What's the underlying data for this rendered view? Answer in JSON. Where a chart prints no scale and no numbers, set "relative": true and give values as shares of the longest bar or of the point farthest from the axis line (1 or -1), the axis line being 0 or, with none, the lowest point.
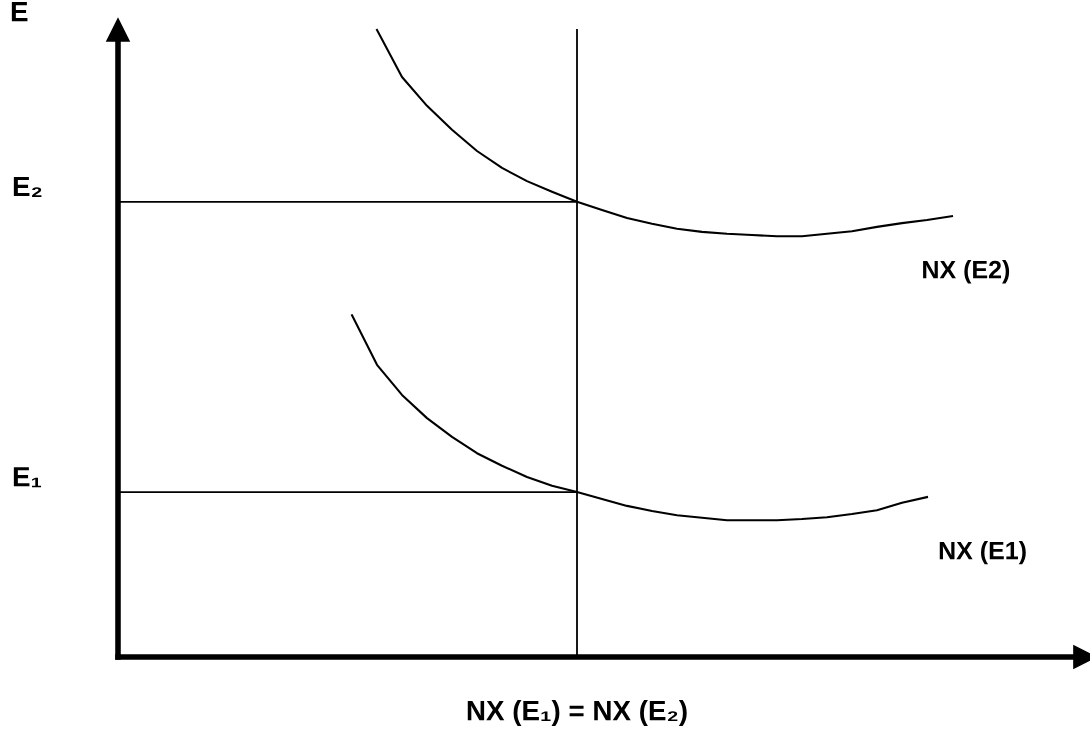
{
  "chart_data": {
    "type": "line",
    "relative": true,
    "ylabel": "E",
    "xlabel": "NX (E₁) = NX (E₂)",
    "legend": false,
    "marker": "none",
    "line_style": "solid",
    "categories": [
      null,
      null,
      null,
      null,
      null,
      null,
      null,
      null,
      null,
      null,
      null,
      null,
      null,
      null,
      null,
      null,
      null,
      null,
      null,
      null,
      null,
      null,
      null,
      null,
      null,
      null,
      null,
      null,
      null,
      null,
      null,
      null,
      null,
      null
    ],
    "series": [
      {
        "name": "NX (E2)",
        "color": "#000000",
        "values": [
          null,
          null,
          null,
          null,
          null,
          null,
          null,
          null,
          null,
          null,
          1.0,
          0.925,
          0.879,
          0.841,
          0.807,
          0.78,
          0.759,
          0.742,
          0.726,
          0.713,
          0.7,
          0.691,
          0.683,
          0.678,
          0.675,
          0.673,
          0.671,
          0.671,
          0.675,
          0.679,
          0.686,
          0.692,
          0.697,
          0.703
        ]
      },
      {
        "name": "NX (E1)",
        "color": "#000000",
        "values": [
          null,
          null,
          null,
          null,
          null,
          null,
          null,
          null,
          null,
          0.545,
          0.466,
          0.418,
          0.381,
          0.351,
          0.325,
          0.305,
          0.287,
          0.273,
          0.263,
          0.252,
          0.241,
          0.233,
          0.226,
          0.222,
          0.218,
          0.218,
          0.218,
          0.22,
          0.223,
          0.228,
          0.234,
          0.246,
          0.255,
          null
        ]
      }
    ],
    "ref_lines": [
      {
        "axis": "y",
        "value": 0.726,
        "label": "E₂",
        "color": "#000000"
      },
      {
        "axis": "y",
        "value": 0.263,
        "label": "E₁",
        "color": "#000000"
      }
    ]
  }
}
